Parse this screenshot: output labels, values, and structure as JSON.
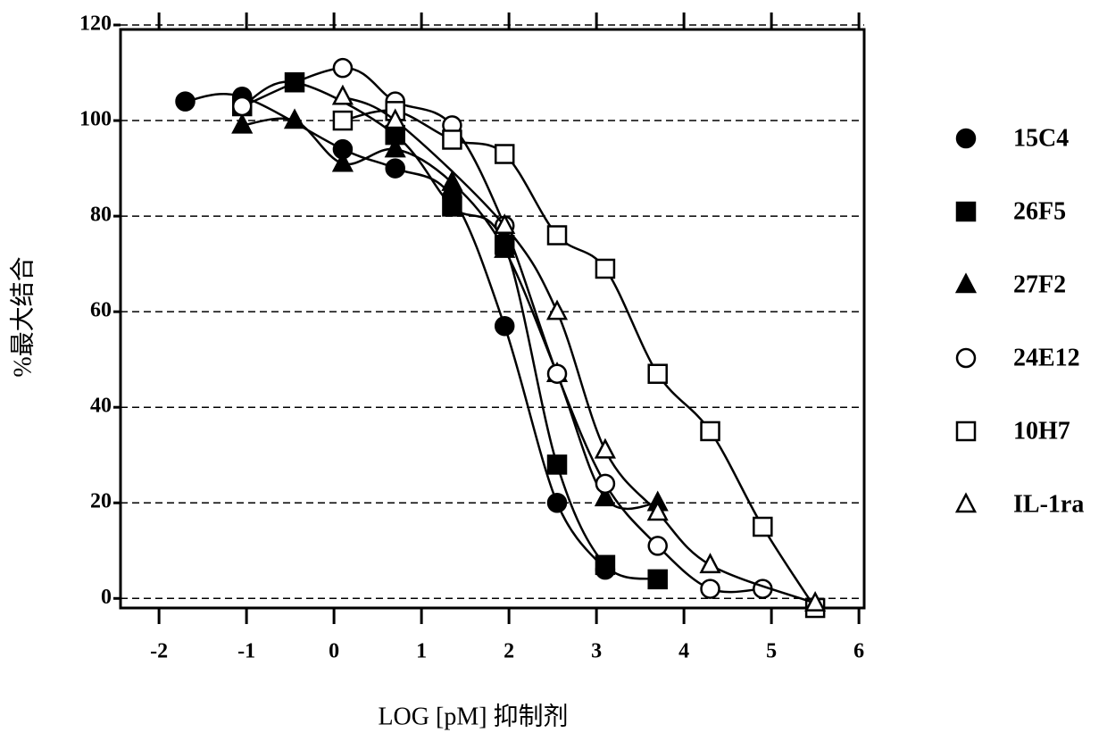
{
  "chart_data": {
    "type": "scatter",
    "x_label": "LOG [pM] 抑制剂",
    "y_label": "%最大结合",
    "xlim": [
      -2.44,
      6.06
    ],
    "xticks": [
      -2,
      -1,
      0,
      1,
      2,
      3,
      4,
      5,
      6
    ],
    "ylim": [
      -2,
      120
    ],
    "yticks": [
      0,
      20,
      40,
      60,
      80,
      100,
      120
    ],
    "grid": true,
    "legend": "right",
    "series": [
      {
        "name": "15C4",
        "color": "#000000",
        "marker": "circle",
        "filled": true,
        "x": [
          -1.7,
          -1.05,
          0.1,
          0.7,
          1.35,
          1.95,
          2.55,
          3.1
        ],
        "values": [
          104,
          105,
          94,
          90,
          84,
          57,
          20,
          6
        ]
      },
      {
        "name": "26F5",
        "color": "#000000",
        "marker": "square",
        "filled": true,
        "x": [
          -1.05,
          -0.45,
          0.7,
          1.35,
          1.95,
          2.55,
          3.1,
          3.7
        ],
        "values": [
          103,
          108,
          97,
          82,
          74,
          28,
          7,
          4
        ]
      },
      {
        "name": "27F2",
        "color": "#000000",
        "marker": "triangle",
        "filled": true,
        "x": [
          -1.05,
          -0.45,
          0.1,
          0.7,
          1.35,
          1.95,
          2.55,
          3.1,
          3.7
        ],
        "values": [
          99,
          100,
          91,
          94,
          87,
          73,
          47,
          21,
          20
        ]
      },
      {
        "name": "24E12",
        "color": "#000000",
        "marker": "circle",
        "filled": false,
        "x": [
          -1.05,
          0.1,
          0.7,
          1.35,
          1.95,
          2.55,
          3.1,
          3.7,
          4.3,
          4.9
        ],
        "values": [
          103,
          111,
          104,
          99,
          78,
          47,
          24,
          11,
          2,
          2
        ]
      },
      {
        "name": "10H7",
        "color": "#000000",
        "marker": "square",
        "filled": false,
        "x": [
          0.1,
          0.7,
          1.35,
          1.95,
          2.55,
          3.1,
          3.7,
          4.3,
          4.9,
          5.5
        ],
        "values": [
          100,
          102,
          96,
          93,
          76,
          69,
          47,
          35,
          15,
          -2
        ]
      },
      {
        "name": "IL-1ra",
        "color": "#000000",
        "marker": "triangle",
        "filled": false,
        "x": [
          0.1,
          0.7,
          1.95,
          2.55,
          3.1,
          3.7,
          4.3,
          5.5
        ],
        "values": [
          105,
          100,
          78,
          60,
          31,
          18,
          7,
          -1
        ]
      }
    ]
  }
}
